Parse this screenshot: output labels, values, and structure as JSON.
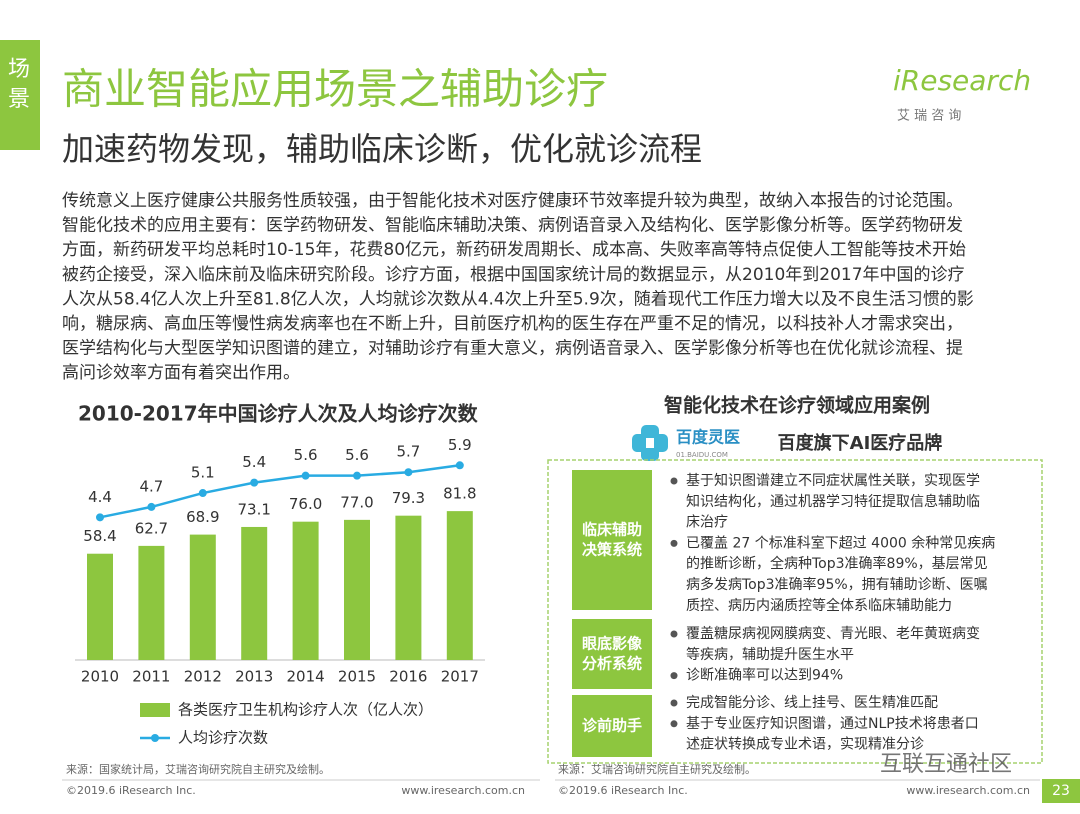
{
  "tab": "场景",
  "header": {
    "title": "商业智能应用场景之辅助诊疗",
    "subtitle": "加速药物发现，辅助临床诊断，优化就诊流程"
  },
  "logo": {
    "brand": "iResearch",
    "cn": "艾 瑞 咨 询"
  },
  "body": [
    "传统意义上医疗健康公共服务性质较强，由于智能化技术对医疗健康环节效率提升较为典型，故纳入本报告的讨论范围。",
    "智能化技术的应用主要有：医学药物研发、智能临床辅助决策、病例语音录入及结构化、医学影像分析等。医学药物研发",
    "方面，新药研发平均总耗时10-15年，花费80亿元，新药研发周期长、成本高、失败率高等特点促使人工智能等技术开始",
    "被药企接受，深入临床前及临床研究阶段。诊疗方面，根据中国国家统计局的数据显示，从2010年到2017年中国的诊疗",
    "人次从58.4亿人次上升至81.8亿人次，人均就诊次数从4.4次上升至5.9次，随着现代工作压力增大以及不良生活习惯的影",
    "响，糖尿病、高血压等慢性病发病率也在不断上升，目前医疗机构的医生存在严重不足的情况，以科技补人才需求突出，",
    "医学结构化与大型医学知识图谱的建立，对辅助诊疗有重大意义，病例语音录入、医学影像分析等也在优化就诊流程、提",
    "高问诊效率方面有着突出作用。"
  ],
  "chart_data": {
    "type": "bar",
    "title": "2010-2017年中国诊疗人次及人均诊疗次数",
    "categories": [
      "2010",
      "2011",
      "2012",
      "2013",
      "2014",
      "2015",
      "2016",
      "2017"
    ],
    "series": [
      {
        "name": "各类医疗卫生机构诊疗人次（亿人次）",
        "type": "bar",
        "color": "#8dc63f",
        "values": [
          58.4,
          62.7,
          68.9,
          73.1,
          76.0,
          77.0,
          79.3,
          81.8
        ],
        "value_labels": [
          "58.4",
          "62.7",
          "68.9",
          "73.1",
          "76.0",
          "77.0",
          "79.3",
          "81.8"
        ]
      },
      {
        "name": "人均诊疗次数",
        "type": "line",
        "color": "#29abe2",
        "values": [
          4.4,
          4.7,
          5.1,
          5.4,
          5.6,
          5.6,
          5.7,
          5.9
        ]
      }
    ],
    "legend": "bottom"
  },
  "cases": {
    "title": "智能化技术在诊疗领域应用案例",
    "brand": {
      "logo": "百度灵医",
      "domain": "01.BAIDU.COM",
      "tagline": "百度旗下AI医疗品牌"
    },
    "items": [
      {
        "label": [
          "临床辅助",
          "决策系统"
        ],
        "bullets": [
          [
            "基于知识图谱建立不同症状属性关联，实现医学",
            "知识结构化，通过机器学习特征提取信息辅助临",
            "床治疗"
          ],
          [
            "已覆盖 27 个标准科室下超过 4000 余种常见疾病",
            "的推断诊断，全病种Top3准确率89%，基层常见",
            "病多发病Top3准确率95%，拥有辅助诊断、医嘱",
            "质控、病历内涵质控等全体系临床辅助能力"
          ]
        ]
      },
      {
        "label": [
          "眼底影像",
          "分析系统"
        ],
        "bullets": [
          [
            "覆盖糖尿病视网膜病变、青光眼、老年黄斑病变",
            "等疾病，辅助提升医生水平"
          ],
          [
            "诊断准确率可以达到94%"
          ]
        ]
      },
      {
        "label": [
          "诊前助手"
        ],
        "bullets": [
          [
            "完成智能分诊、线上挂号、医生精准匹配"
          ],
          [
            "基于专业医疗知识图谱，通过NLP技术将患者口",
            "述症状转换成专业术语，实现精准分诊"
          ]
        ]
      }
    ]
  },
  "sources": [
    "来源：国家统计局，艾瑞咨询研究院自主研究及绘制。",
    "来源：艾瑞咨询研究院自主研究及绘制。"
  ],
  "footer": {
    "copyright": "©2019.6 iResearch Inc.",
    "url": "www.iresearch.com.cn",
    "page": "23"
  },
  "watermark": "互联互通社区"
}
